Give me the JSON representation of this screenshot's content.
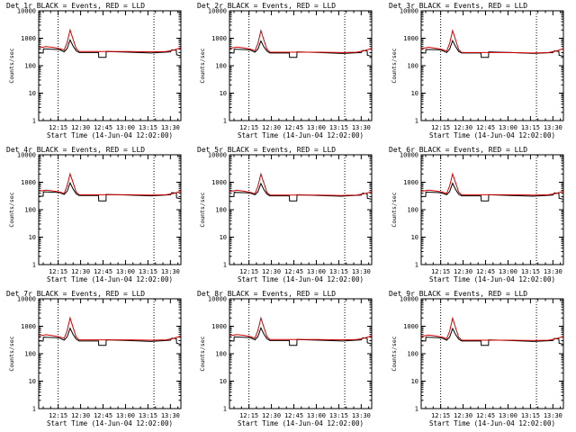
{
  "chart_data": [
    {
      "type": "line",
      "title": "Det 1r BLACK = Events, RED = LLD",
      "xlabel": "Start Time (14-Jun-04 12:02:00)",
      "ylabel": "Counts/sec",
      "yscale": "log",
      "ylim": [
        1,
        10000
      ],
      "xlim_minutes": [
        0,
        95
      ],
      "xticklabels": [
        "12:15",
        "12:30",
        "12:45",
        "13:00",
        "13:15",
        "13:30"
      ],
      "yticklabels": [
        "1",
        "10",
        "100",
        "1000",
        "10000"
      ],
      "vlines_minutes": [
        13,
        77
      ],
      "series": [
        {
          "name": "Events",
          "color": "#000000",
          "x": [
            0,
            3,
            3.1,
            12,
            14,
            17,
            19,
            21,
            23,
            25,
            27,
            30,
            40,
            40.1,
            45,
            45.1,
            60,
            75,
            88,
            89,
            92,
            92.1,
            95
          ],
          "y": [
            290,
            290,
            410,
            390,
            380,
            320,
            420,
            870,
            510,
            350,
            300,
            300,
            300,
            200,
            200,
            330,
            310,
            290,
            320,
            380,
            360,
            250,
            230
          ]
        },
        {
          "name": "LLD",
          "color": "#d00000",
          "x": [
            0,
            5,
            10,
            14,
            17,
            19,
            21,
            23,
            25,
            27,
            30,
            45,
            60,
            75,
            85,
            90,
            95
          ],
          "y": [
            450,
            500,
            460,
            420,
            370,
            700,
            2000,
            900,
            420,
            330,
            330,
            330,
            330,
            320,
            330,
            370,
            450
          ]
        }
      ]
    },
    {
      "type": "line",
      "title": "Det 2r BLACK = Events, RED = LLD",
      "xlabel": "Start Time (14-Jun-04 12:02:00)",
      "ylabel": "Counts/sec",
      "yscale": "log",
      "ylim": [
        1,
        10000
      ],
      "xlim_minutes": [
        0,
        95
      ],
      "xticklabels": [
        "12:15",
        "12:30",
        "12:45",
        "13:00",
        "13:15",
        "13:30"
      ],
      "yticklabels": [
        "1",
        "10",
        "100",
        "1000",
        "10000"
      ],
      "vlines_minutes": [
        13,
        77
      ],
      "series": [
        {
          "name": "Events",
          "color": "#000000",
          "x": [
            0,
            3,
            3.1,
            12,
            14,
            17,
            19,
            21,
            23,
            25,
            27,
            30,
            40,
            40.1,
            45,
            45.1,
            60,
            75,
            88,
            89,
            92,
            92.1,
            95
          ],
          "y": [
            290,
            290,
            400,
            380,
            370,
            310,
            400,
            800,
            480,
            340,
            290,
            290,
            290,
            200,
            200,
            320,
            300,
            280,
            300,
            360,
            340,
            240,
            220
          ]
        },
        {
          "name": "LLD",
          "color": "#d00000",
          "x": [
            0,
            5,
            10,
            14,
            17,
            19,
            21,
            23,
            25,
            27,
            30,
            45,
            60,
            75,
            85,
            90,
            95
          ],
          "y": [
            430,
            480,
            440,
            400,
            350,
            650,
            1900,
            850,
            400,
            310,
            310,
            310,
            310,
            300,
            310,
            350,
            430
          ]
        }
      ]
    },
    {
      "type": "line",
      "title": "Det 3r BLACK = Events, RED = LLD",
      "xlabel": "Start Time (14-Jun-04 12:02:00)",
      "ylabel": "Counts/sec",
      "yscale": "log",
      "ylim": [
        1,
        10000
      ],
      "xlim_minutes": [
        0,
        95
      ],
      "xticklabels": [
        "12:15",
        "12:30",
        "12:45",
        "13:00",
        "13:15",
        "13:30"
      ],
      "yticklabels": [
        "1",
        "10",
        "100",
        "1000",
        "10000"
      ],
      "vlines_minutes": [
        13,
        77
      ],
      "series": [
        {
          "name": "Events",
          "color": "#000000",
          "x": [
            0,
            3,
            3.1,
            12,
            14,
            17,
            19,
            21,
            23,
            25,
            27,
            30,
            40,
            40.1,
            45,
            45.1,
            60,
            75,
            88,
            89,
            92,
            92.1,
            95
          ],
          "y": [
            290,
            290,
            390,
            380,
            360,
            300,
            400,
            820,
            490,
            330,
            290,
            290,
            290,
            200,
            200,
            320,
            300,
            280,
            300,
            350,
            330,
            240,
            220
          ]
        },
        {
          "name": "LLD",
          "color": "#d00000",
          "x": [
            0,
            5,
            10,
            14,
            17,
            19,
            21,
            23,
            25,
            27,
            30,
            45,
            60,
            75,
            85,
            90,
            95
          ],
          "y": [
            420,
            470,
            430,
            390,
            340,
            650,
            1900,
            850,
            390,
            300,
            300,
            300,
            300,
            290,
            300,
            340,
            420
          ]
        }
      ]
    },
    {
      "type": "line",
      "title": "Det 4r BLACK = Events, RED = LLD",
      "xlabel": "Start Time (14-Jun-04 12:02:00)",
      "ylabel": "Counts/sec",
      "yscale": "log",
      "ylim": [
        1,
        10000
      ],
      "xlim_minutes": [
        0,
        95
      ],
      "xticklabels": [
        "12:15",
        "12:30",
        "12:45",
        "13:00",
        "13:15",
        "13:30"
      ],
      "yticklabels": [
        "1",
        "10",
        "100",
        "1000",
        "10000"
      ],
      "vlines_minutes": [
        13,
        77
      ],
      "series": [
        {
          "name": "Events",
          "color": "#000000",
          "x": [
            0,
            3,
            3.1,
            12,
            14,
            17,
            19,
            21,
            23,
            25,
            27,
            30,
            40,
            40.1,
            45,
            45.1,
            60,
            75,
            88,
            89,
            92,
            92.1,
            95
          ],
          "y": [
            310,
            310,
            450,
            430,
            420,
            360,
            470,
            950,
            560,
            380,
            330,
            330,
            330,
            210,
            210,
            360,
            340,
            320,
            350,
            420,
            400,
            270,
            250
          ]
        },
        {
          "name": "LLD",
          "color": "#d00000",
          "x": [
            0,
            5,
            10,
            14,
            17,
            19,
            21,
            23,
            25,
            27,
            30,
            45,
            60,
            75,
            85,
            90,
            95
          ],
          "y": [
            470,
            520,
            480,
            440,
            390,
            750,
            2000,
            950,
            440,
            350,
            350,
            350,
            350,
            340,
            350,
            390,
            470
          ]
        }
      ]
    },
    {
      "type": "line",
      "title": "Det 5r BLACK = Events, RED = LLD",
      "xlabel": "Start Time (14-Jun-04 12:02:00)",
      "ylabel": "Counts/sec",
      "yscale": "log",
      "ylim": [
        1,
        10000
      ],
      "xlim_minutes": [
        0,
        95
      ],
      "xticklabels": [
        "12:15",
        "12:30",
        "12:45",
        "13:00",
        "13:15",
        "13:30"
      ],
      "yticklabels": [
        "1",
        "10",
        "100",
        "1000",
        "10000"
      ],
      "vlines_minutes": [
        13,
        77
      ],
      "series": [
        {
          "name": "Events",
          "color": "#000000",
          "x": [
            0,
            3,
            3.1,
            12,
            14,
            17,
            19,
            21,
            23,
            25,
            27,
            30,
            40,
            40.1,
            45,
            45.1,
            60,
            75,
            88,
            89,
            92,
            92.1,
            95
          ],
          "y": [
            300,
            300,
            430,
            410,
            400,
            350,
            450,
            900,
            530,
            370,
            320,
            320,
            320,
            210,
            210,
            350,
            330,
            310,
            340,
            400,
            380,
            260,
            240
          ]
        },
        {
          "name": "LLD",
          "color": "#d00000",
          "x": [
            0,
            5,
            10,
            14,
            17,
            19,
            21,
            23,
            25,
            27,
            30,
            45,
            60,
            75,
            85,
            90,
            95
          ],
          "y": [
            460,
            510,
            470,
            430,
            380,
            720,
            2000,
            920,
            430,
            340,
            340,
            340,
            340,
            330,
            340,
            380,
            460
          ]
        }
      ]
    },
    {
      "type": "line",
      "title": "Det 6r BLACK = Events, RED = LLD",
      "xlabel": "Start Time (14-Jun-04 12:02:00)",
      "ylabel": "Counts/sec",
      "yscale": "log",
      "ylim": [
        1,
        10000
      ],
      "xlim_minutes": [
        0,
        95
      ],
      "xticklabels": [
        "12:15",
        "12:30",
        "12:45",
        "13:00",
        "13:15",
        "13:30"
      ],
      "yticklabels": [
        "1",
        "10",
        "100",
        "1000",
        "10000"
      ],
      "vlines_minutes": [
        13,
        77
      ],
      "series": [
        {
          "name": "Events",
          "color": "#000000",
          "x": [
            0,
            3,
            3.1,
            12,
            14,
            17,
            19,
            21,
            23,
            25,
            27,
            30,
            40,
            40.1,
            45,
            45.1,
            60,
            75,
            88,
            89,
            92,
            92.1,
            95
          ],
          "y": [
            300,
            300,
            440,
            420,
            400,
            350,
            460,
            920,
            540,
            370,
            320,
            320,
            320,
            210,
            210,
            350,
            330,
            310,
            340,
            410,
            390,
            260,
            240
          ]
        },
        {
          "name": "LLD",
          "color": "#d00000",
          "x": [
            0,
            5,
            10,
            14,
            17,
            19,
            21,
            23,
            25,
            27,
            30,
            45,
            60,
            75,
            85,
            90,
            95
          ],
          "y": [
            470,
            520,
            480,
            440,
            390,
            740,
            2000,
            940,
            440,
            350,
            350,
            350,
            350,
            340,
            350,
            390,
            470
          ]
        }
      ]
    },
    {
      "type": "line",
      "title": "Det 7r BLACK = Events, RED = LLD",
      "xlabel": "Start Time (14-Jun-04 12:02:00)",
      "ylabel": "Counts/sec",
      "yscale": "log",
      "ylim": [
        1,
        10000
      ],
      "xlim_minutes": [
        0,
        95
      ],
      "xticklabels": [
        "12:15",
        "12:30",
        "12:45",
        "13:00",
        "13:15",
        "13:30"
      ],
      "yticklabels": [
        "1",
        "10",
        "100",
        "1000",
        "10000"
      ],
      "vlines_minutes": [
        13,
        77
      ],
      "series": [
        {
          "name": "Events",
          "color": "#000000",
          "x": [
            0,
            3,
            3.1,
            12,
            14,
            17,
            19,
            21,
            23,
            25,
            27,
            30,
            40,
            40.1,
            45,
            45.1,
            60,
            75,
            88,
            89,
            92,
            92.1,
            95
          ],
          "y": [
            290,
            290,
            400,
            380,
            370,
            310,
            410,
            850,
            500,
            340,
            290,
            290,
            290,
            200,
            200,
            320,
            300,
            280,
            310,
            370,
            350,
            240,
            220
          ]
        },
        {
          "name": "LLD",
          "color": "#d00000",
          "x": [
            0,
            5,
            10,
            14,
            17,
            19,
            21,
            23,
            25,
            27,
            30,
            45,
            60,
            75,
            85,
            90,
            95
          ],
          "y": [
            440,
            490,
            450,
            410,
            360,
            690,
            2000,
            880,
            410,
            320,
            320,
            320,
            320,
            310,
            320,
            360,
            440
          ]
        }
      ]
    },
    {
      "type": "line",
      "title": "Det 8r BLACK = Events, RED = LLD",
      "xlabel": "Start Time (14-Jun-04 12:02:00)",
      "ylabel": "Counts/sec",
      "yscale": "log",
      "ylim": [
        1,
        10000
      ],
      "xlim_minutes": [
        0,
        95
      ],
      "xticklabels": [
        "12:15",
        "12:30",
        "12:45",
        "13:00",
        "13:15",
        "13:30"
      ],
      "yticklabels": [
        "1",
        "10",
        "100",
        "1000",
        "10000"
      ],
      "vlines_minutes": [
        13,
        77
      ],
      "series": [
        {
          "name": "Events",
          "color": "#000000",
          "x": [
            0,
            3,
            3.1,
            12,
            14,
            17,
            19,
            21,
            23,
            25,
            27,
            30,
            40,
            40.1,
            45,
            45.1,
            60,
            75,
            88,
            89,
            92,
            92.1,
            95
          ],
          "y": [
            290,
            290,
            410,
            390,
            380,
            320,
            420,
            870,
            510,
            350,
            300,
            300,
            300,
            200,
            200,
            330,
            310,
            290,
            320,
            380,
            360,
            250,
            230
          ]
        },
        {
          "name": "LLD",
          "color": "#d00000",
          "x": [
            0,
            5,
            10,
            14,
            17,
            19,
            21,
            23,
            25,
            27,
            30,
            45,
            60,
            75,
            85,
            90,
            95
          ],
          "y": [
            450,
            500,
            460,
            420,
            370,
            700,
            2000,
            900,
            420,
            330,
            330,
            330,
            330,
            320,
            330,
            370,
            450
          ]
        }
      ]
    },
    {
      "type": "line",
      "title": "Det 9r BLACK = Events, RED = LLD",
      "xlabel": "Start Time (14-Jun-04 12:02:00)",
      "ylabel": "Counts/sec",
      "yscale": "log",
      "ylim": [
        1,
        10000
      ],
      "xlim_minutes": [
        0,
        95
      ],
      "xticklabels": [
        "12:15",
        "12:30",
        "12:45",
        "13:00",
        "13:15",
        "13:30"
      ],
      "yticklabels": [
        "1",
        "10",
        "100",
        "1000",
        "10000"
      ],
      "vlines_minutes": [
        13,
        77
      ],
      "series": [
        {
          "name": "Events",
          "color": "#000000",
          "x": [
            0,
            3,
            3.1,
            12,
            14,
            17,
            19,
            21,
            23,
            25,
            27,
            30,
            40,
            40.1,
            45,
            45.1,
            60,
            75,
            88,
            89,
            92,
            92.1,
            95
          ],
          "y": [
            290,
            290,
            400,
            380,
            370,
            310,
            400,
            830,
            490,
            340,
            290,
            290,
            290,
            200,
            200,
            320,
            300,
            280,
            300,
            360,
            340,
            240,
            220
          ]
        },
        {
          "name": "LLD",
          "color": "#d00000",
          "x": [
            0,
            5,
            10,
            14,
            17,
            19,
            21,
            23,
            25,
            27,
            30,
            45,
            60,
            75,
            85,
            90,
            95
          ],
          "y": [
            430,
            480,
            440,
            400,
            350,
            660,
            1950,
            860,
            400,
            310,
            310,
            310,
            310,
            300,
            310,
            350,
            430
          ]
        }
      ]
    }
  ]
}
